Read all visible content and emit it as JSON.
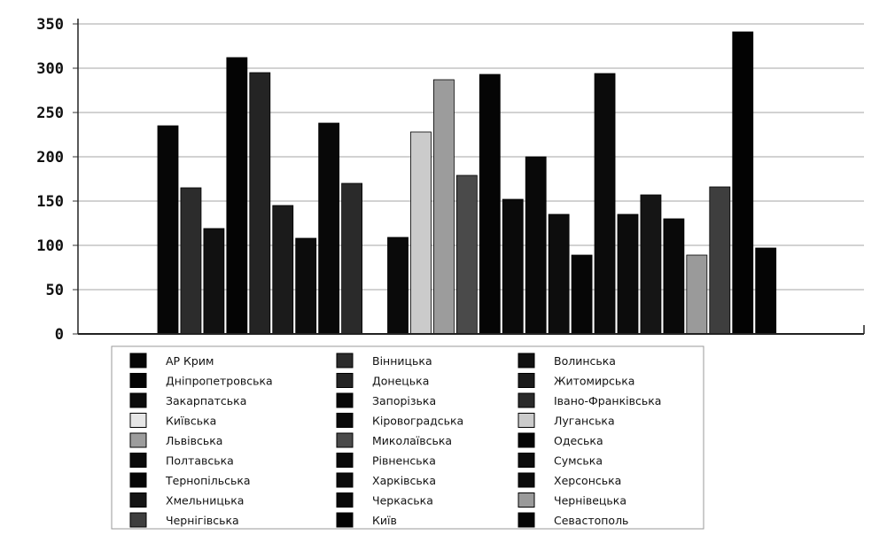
{
  "chart_data": {
    "type": "bar",
    "title": "",
    "xlabel": "",
    "ylabel": "",
    "ylim": [
      0,
      350
    ],
    "yticks": [
      0,
      50,
      100,
      150,
      200,
      250,
      300,
      350
    ],
    "grid": true,
    "legend_placement": "bottom",
    "categories": [
      "АР Крим",
      "Вінницька",
      "Волинська",
      "Дніпропетровська",
      "Донецька",
      "Житомирська",
      "Закарпатська",
      "Запорізька",
      "Івано-Франківська",
      "Київська",
      "Кіровоградська",
      "Луганська",
      "Львівська",
      "Миколаївська",
      "Одеська",
      "Полтавська",
      "Рівненська",
      "Сумська",
      "Тернопільська",
      "Харківська",
      "Херсонська",
      "Хмельницька",
      "Черкаська",
      "Чернівецька",
      "Чернігівська",
      "Київ",
      "Севастополь"
    ],
    "values": [
      235,
      165,
      119,
      312,
      295,
      145,
      108,
      238,
      170,
      0,
      109,
      228,
      287,
      179,
      293,
      152,
      200,
      135,
      89,
      294,
      135,
      157,
      130,
      89,
      166,
      341,
      97
    ],
    "colors": [
      "#060606",
      "#2c2c2c",
      "#111111",
      "#040404",
      "#242424",
      "#1b1b1b",
      "#0c0c0c",
      "#080808",
      "#2a2a2a",
      "#e6e6e6",
      "#0a0a0a",
      "#cbcbcb",
      "#9c9c9c",
      "#4a4a4a",
      "#050505",
      "#0a0a0a",
      "#090909",
      "#0d0d0d",
      "#060606",
      "#0b0b0b",
      "#0c0c0c",
      "#151515",
      "#090909",
      "#9a9a9a",
      "#3e3e3e",
      "#030303",
      "#050505"
    ]
  }
}
